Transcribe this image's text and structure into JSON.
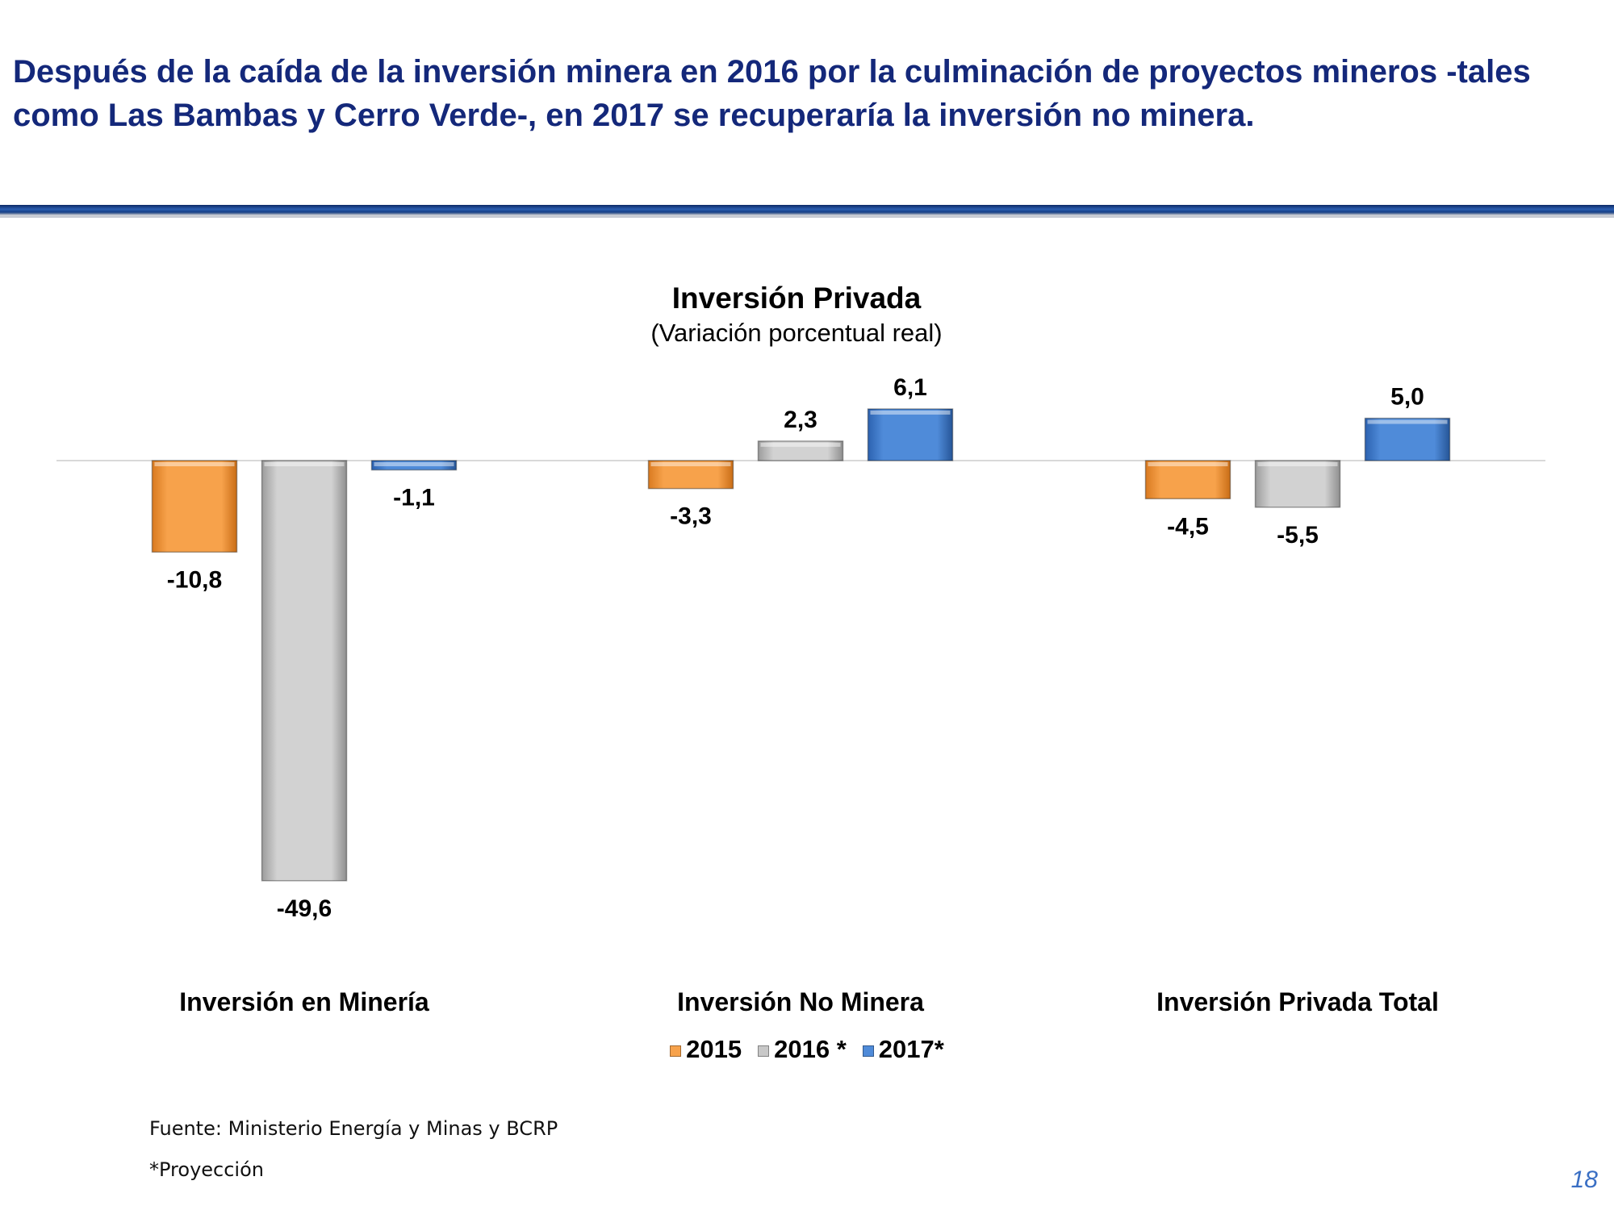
{
  "slide": {
    "headline": "Después de la caída de la inversión minera en 2016 por la culminación de proyectos mineros -tales como Las Bambas y Cerro Verde-, en 2017 se recuperaría la inversión no minera.",
    "source": "Fuente: Ministerio Energía y Minas y BCRP",
    "footnote": "*Proyección",
    "page_number": "18",
    "colors": {
      "headline": "#14287a",
      "rule": "#1f4e96",
      "page_number": "#3a6fc4"
    }
  },
  "chart_data": {
    "type": "bar",
    "title": "Inversión Privada",
    "subtitle": "(Variación porcentual real)",
    "categories": [
      "Inversión en Minería",
      "Inversión No Minera",
      "Inversión Privada Total"
    ],
    "series": [
      {
        "name": "2015",
        "color": "#f7a24b",
        "values": [
          -10.8,
          -3.3,
          -4.5
        ],
        "labels": [
          "-10,8",
          "-3,3",
          "-4,5"
        ]
      },
      {
        "name": "2016 *",
        "color": "#c8c8c8",
        "values": [
          -49.6,
          2.3,
          -5.5
        ],
        "labels": [
          "-49,6",
          "2,3",
          "-5,5"
        ]
      },
      {
        "name": "2017*",
        "color": "#4f8bd9",
        "values": [
          -1.1,
          6.1,
          5.0
        ],
        "labels": [
          "-1,1",
          "6,1",
          "5,0"
        ]
      }
    ],
    "legend_position": "bottom-center",
    "grid": false
  }
}
